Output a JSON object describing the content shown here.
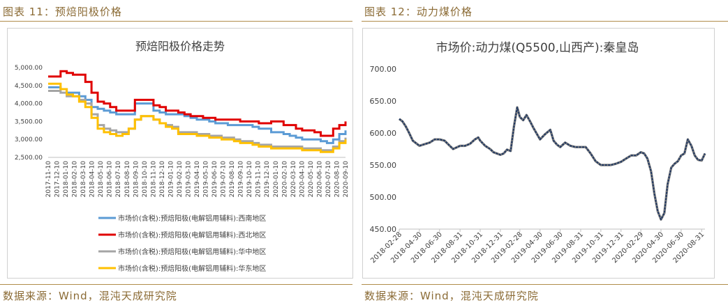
{
  "left": {
    "header": "图表 11：预焙阳极价格",
    "source": "数据来源：Wind，混沌天成研究院",
    "chart_data": {
      "type": "line",
      "title": "预焙阳极价格走势",
      "ylim": [
        2500,
        5000
      ],
      "yticks": [
        "5,000.00",
        "4,500.00",
        "4,000.00",
        "3,500.00",
        "3,000.00",
        "2,500.00"
      ],
      "ytick_values": [
        5000,
        4500,
        4000,
        3500,
        3000,
        2500
      ],
      "x_tick_labels": [
        "2017-11-10",
        "2017-12-10",
        "2018-01-10",
        "2018-02-10",
        "2018-03-10",
        "2018-04-10",
        "2018-05-10",
        "2018-06-10",
        "2018-07-10",
        "2018-08-10",
        "2018-09-10",
        "2018-10-10",
        "2018-11-10",
        "2018-12-10",
        "2019-01-10",
        "2019-02-10",
        "2019-03-10",
        "2019-04-10",
        "2019-05-10",
        "2019-06-10",
        "2019-07-10",
        "2019-08-10",
        "2019-09-10",
        "2019-10-10",
        "2019-11-10",
        "2019-12-10",
        "2020-01-10",
        "2020-02-10",
        "2020-03-10",
        "2020-04-10",
        "2020-05-10",
        "2020-06-10",
        "2020-07-10",
        "2020-08-10",
        "2020-09-10"
      ],
      "legend_position": "bottom",
      "series": [
        {
          "name": "市场价(含税):预焙阳极(电解铝用辅料):西南地区",
          "color": "#5B9BD5",
          "values": [
            4450,
            4450,
            4400,
            4300,
            4300,
            4200,
            4100,
            3900,
            3850,
            3800,
            3750,
            3700,
            3700,
            3700,
            4000,
            4000,
            4000,
            3800,
            3750,
            3700,
            3700,
            3700,
            3650,
            3600,
            3550,
            3550,
            3500,
            3450,
            3450,
            3400,
            3400,
            3400,
            3400,
            3350,
            3300,
            3300,
            3200,
            3200,
            3150,
            3100,
            3050,
            3000,
            3000,
            3000,
            2950,
            2900,
            3000,
            3150,
            3250
          ]
        },
        {
          "name": "市场价(含税):预焙阳极(电解铝用辅料):西北地区",
          "color": "#E00000",
          "values": [
            4750,
            4750,
            4900,
            4850,
            4800,
            4800,
            4600,
            4300,
            4050,
            4000,
            3900,
            3800,
            3800,
            3800,
            4100,
            4100,
            4100,
            3950,
            3900,
            3800,
            3800,
            3750,
            3700,
            3650,
            3650,
            3600,
            3600,
            3550,
            3550,
            3550,
            3550,
            3500,
            3500,
            3500,
            3450,
            3450,
            3500,
            3500,
            3400,
            3400,
            3300,
            3250,
            3250,
            3200,
            3100,
            3100,
            3300,
            3400,
            3500
          ]
        },
        {
          "name": "市场价(含税):预焙阳极(电解铝用辅料):华中地区",
          "color": "#A5A5A5",
          "values": [
            4350,
            4350,
            4300,
            4200,
            4200,
            4100,
            4000,
            3700,
            3400,
            3300,
            3250,
            3200,
            3200,
            3300,
            3550,
            3650,
            3650,
            3550,
            3450,
            3400,
            3350,
            3200,
            3200,
            3200,
            3150,
            3150,
            3100,
            3100,
            3050,
            3050,
            3000,
            2950,
            2950,
            2900,
            2850,
            2850,
            2800,
            2800,
            2800,
            2800,
            2800,
            2750,
            2750,
            2750,
            2700,
            2700,
            2800,
            2950,
            3050
          ]
        },
        {
          "name": "市场价(含税):预焙阳极(电解铝用辅料):华东地区",
          "color": "#FFC000",
          "values": [
            4550,
            4550,
            4400,
            4250,
            4200,
            4050,
            3900,
            3600,
            3300,
            3200,
            3150,
            3100,
            3150,
            3300,
            3550,
            3650,
            3650,
            3550,
            3450,
            3350,
            3300,
            3150,
            3150,
            3150,
            3100,
            3100,
            3050,
            3050,
            3000,
            3000,
            2950,
            2900,
            2900,
            2850,
            2800,
            2800,
            2750,
            2750,
            2750,
            2750,
            2750,
            2700,
            2700,
            2700,
            2650,
            2650,
            2750,
            2900,
            3000
          ]
        }
      ]
    }
  },
  "right": {
    "header": "图表 12：动力煤价格",
    "source": "数据来源：Wind，混沌天成研究院",
    "chart_data": {
      "type": "line",
      "title": "市场价:动力煤(Q5500,山西产):秦皇岛",
      "ylim": [
        450,
        700
      ],
      "yticks": [
        "700.00",
        "650.00",
        "600.00",
        "550.00",
        "500.00",
        "450.00"
      ],
      "ytick_values": [
        700,
        650,
        600,
        550,
        500,
        450
      ],
      "x_tick_labels": [
        "2018-02-28",
        "2018-04-30",
        "2018-06-30",
        "2018-08-31",
        "2018-10-31",
        "2018-12-31",
        "2019-02-28",
        "2019-04-30",
        "2019-06-30",
        "2019-08-31",
        "2019-10-31",
        "2019-12-31",
        "2020-02-29",
        "2020-04-30",
        "2020-06-30",
        "2020-08-31"
      ],
      "series": [
        {
          "name": "",
          "color": "#1F3864",
          "dates": [
            "2018-02-28",
            "2018-03-10",
            "2018-03-20",
            "2018-03-30",
            "2018-04-10",
            "2018-04-30",
            "2018-05-31",
            "2018-06-15",
            "2018-06-30",
            "2018-07-15",
            "2018-07-31",
            "2018-08-10",
            "2018-08-31",
            "2018-09-15",
            "2018-09-30",
            "2018-10-15",
            "2018-10-25",
            "2018-10-31",
            "2018-11-15",
            "2018-11-30",
            "2018-12-10",
            "2018-12-20",
            "2018-12-31",
            "2019-01-10",
            "2019-01-20",
            "2019-01-31",
            "2019-02-10",
            "2019-02-20",
            "2019-02-28",
            "2019-03-10",
            "2019-03-20",
            "2019-03-31",
            "2019-04-10",
            "2019-04-30",
            "2019-05-15",
            "2019-05-31",
            "2019-06-10",
            "2019-06-20",
            "2019-06-30",
            "2019-07-15",
            "2019-07-31",
            "2019-08-15",
            "2019-08-31",
            "2019-09-15",
            "2019-09-30",
            "2019-10-15",
            "2019-10-31",
            "2019-11-15",
            "2019-11-30",
            "2019-12-15",
            "2019-12-31",
            "2020-01-15",
            "2020-01-31",
            "2020-02-15",
            "2020-02-29",
            "2020-03-10",
            "2020-03-20",
            "2020-03-31",
            "2020-04-10",
            "2020-04-20",
            "2020-04-30",
            "2020-05-10",
            "2020-05-20",
            "2020-05-31",
            "2020-06-10",
            "2020-06-20",
            "2020-06-30",
            "2020-07-10",
            "2020-07-20",
            "2020-07-31",
            "2020-08-10",
            "2020-08-20",
            "2020-08-31",
            "2020-09-10"
          ],
          "values": [
            622,
            618,
            610,
            600,
            588,
            580,
            585,
            590,
            590,
            588,
            580,
            575,
            580,
            580,
            583,
            590,
            593,
            588,
            580,
            575,
            570,
            568,
            566,
            568,
            574,
            572,
            610,
            640,
            625,
            620,
            628,
            618,
            608,
            590,
            598,
            605,
            588,
            582,
            578,
            585,
            580,
            578,
            578,
            578,
            568,
            556,
            550,
            550,
            550,
            552,
            555,
            560,
            565,
            565,
            570,
            568,
            560,
            540,
            505,
            478,
            465,
            475,
            520,
            546,
            552,
            556,
            565,
            568,
            590,
            580,
            565,
            558,
            557,
            568
          ]
        }
      ]
    }
  }
}
